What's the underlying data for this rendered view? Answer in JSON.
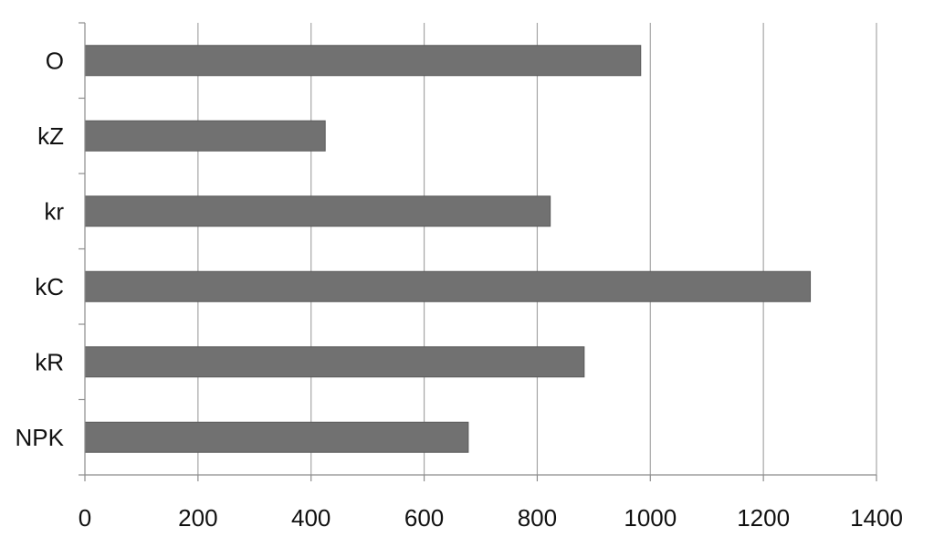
{
  "chart_data": {
    "type": "bar",
    "orientation": "horizontal",
    "categories": [
      "O",
      "kZ",
      "kr",
      "kC",
      "kR",
      "NPK"
    ],
    "values": [
      983,
      425,
      823,
      1283,
      883,
      678
    ],
    "xlim": [
      0,
      1400
    ],
    "xticks": [
      "0",
      "200",
      "400",
      "600",
      "800",
      "1000",
      "1200",
      "1400"
    ],
    "grid": "vertical",
    "legend": "none",
    "colors": {
      "bar": "#717171",
      "bar_border": "#5a5a5a",
      "grid": "#a6a6a6",
      "axis": "#8c8c8c"
    }
  }
}
